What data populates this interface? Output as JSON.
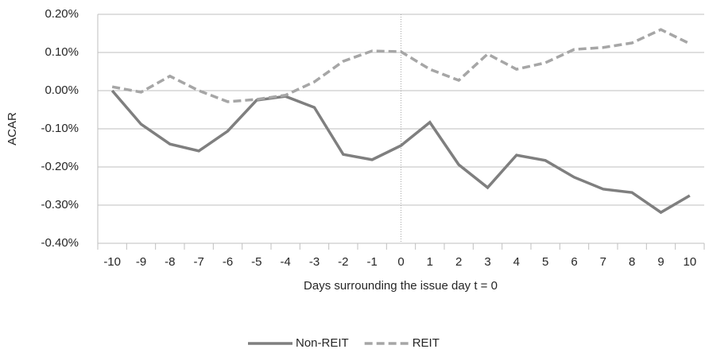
{
  "chart_data": {
    "type": "line",
    "y_label": "ACAR",
    "x_label": "Days surrounding the issue day t = 0",
    "categories": [
      "-10",
      "-9",
      "-8",
      "-7",
      "-6",
      "-5",
      "-4",
      "-3",
      "-2",
      "-1",
      "0",
      "1",
      "2",
      "3",
      "4",
      "5",
      "6",
      "7",
      "8",
      "9",
      "10"
    ],
    "series": [
      {
        "name": "Non-REIT",
        "color": "#7f7f7f",
        "dash": "solid",
        "values": [
          0.0,
          -0.088,
          -0.14,
          -0.158,
          -0.106,
          -0.025,
          -0.015,
          -0.044,
          -0.167,
          -0.181,
          -0.144,
          -0.083,
          -0.194,
          -0.254,
          -0.169,
          -0.183,
          -0.227,
          -0.258,
          -0.267,
          -0.319,
          -0.275
        ]
      },
      {
        "name": "REIT",
        "color": "#a6a6a6",
        "dash": "dashed",
        "values": [
          0.01,
          -0.004,
          0.038,
          0.0,
          -0.029,
          -0.023,
          -0.012,
          0.023,
          0.077,
          0.104,
          0.102,
          0.056,
          0.027,
          0.096,
          0.056,
          0.073,
          0.108,
          0.113,
          0.125,
          0.16,
          0.123
        ]
      }
    ],
    "ylim": [
      -0.4,
      0.2
    ],
    "yticks": [
      {
        "value": -0.4,
        "label": "-0.40%"
      },
      {
        "value": -0.3,
        "label": "-0.30%"
      },
      {
        "value": -0.2,
        "label": "-0.20%"
      },
      {
        "value": -0.1,
        "label": "-0.10%"
      },
      {
        "value": 0,
        "label": "0.00%"
      },
      {
        "value": 0.1,
        "label": "0.10%"
      },
      {
        "value": 0.2,
        "label": "0.20%"
      }
    ],
    "grid": true,
    "vline_category": "0",
    "legend": "bottom"
  }
}
